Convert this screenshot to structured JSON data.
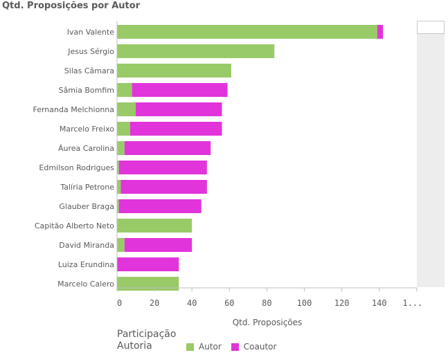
{
  "title": "Qtd. Proposições por Autor",
  "legend": {
    "title": "Participação Autoria",
    "items": [
      {
        "label": "Autor",
        "color": "#99CA68"
      },
      {
        "label": "Coautor",
        "color": "#E134DB"
      }
    ]
  },
  "chart_data": {
    "type": "bar",
    "orientation": "horizontal",
    "stacked": true,
    "title": "Qtd. Proposições por Autor",
    "xlabel": "Qtd. Proposições",
    "ylabel": "",
    "xlim": [
      0,
      158
    ],
    "xticks": [
      "0",
      "20",
      "40",
      "60",
      "80",
      "100",
      "120",
      "140",
      "1..."
    ],
    "grid": false,
    "legend_position": "bottom",
    "categories": [
      "Ivan Valente",
      "Jesus Sérgio",
      "Silas Câmara",
      "Sâmia Bomfim",
      "Fernanda Melchionna",
      "Marcelo Freixo",
      "Áurea Carolina",
      "Edmilson Rodrigues",
      "Talíria Petrone",
      "Glauber Braga",
      "Capitão Alberto Neto",
      "David Miranda",
      "Luiza Erundina",
      "Marcelo Calero"
    ],
    "series": [
      {
        "name": "Autor",
        "color": "#99CA68",
        "values": [
          139,
          84,
          61,
          8,
          10,
          7,
          4,
          1,
          2,
          1,
          40,
          4,
          0,
          33
        ]
      },
      {
        "name": "Coautor",
        "color": "#E134DB",
        "values": [
          3,
          0,
          0,
          51,
          46,
          49,
          46,
          47,
          46,
          44,
          0,
          36,
          33,
          0
        ]
      }
    ]
  }
}
